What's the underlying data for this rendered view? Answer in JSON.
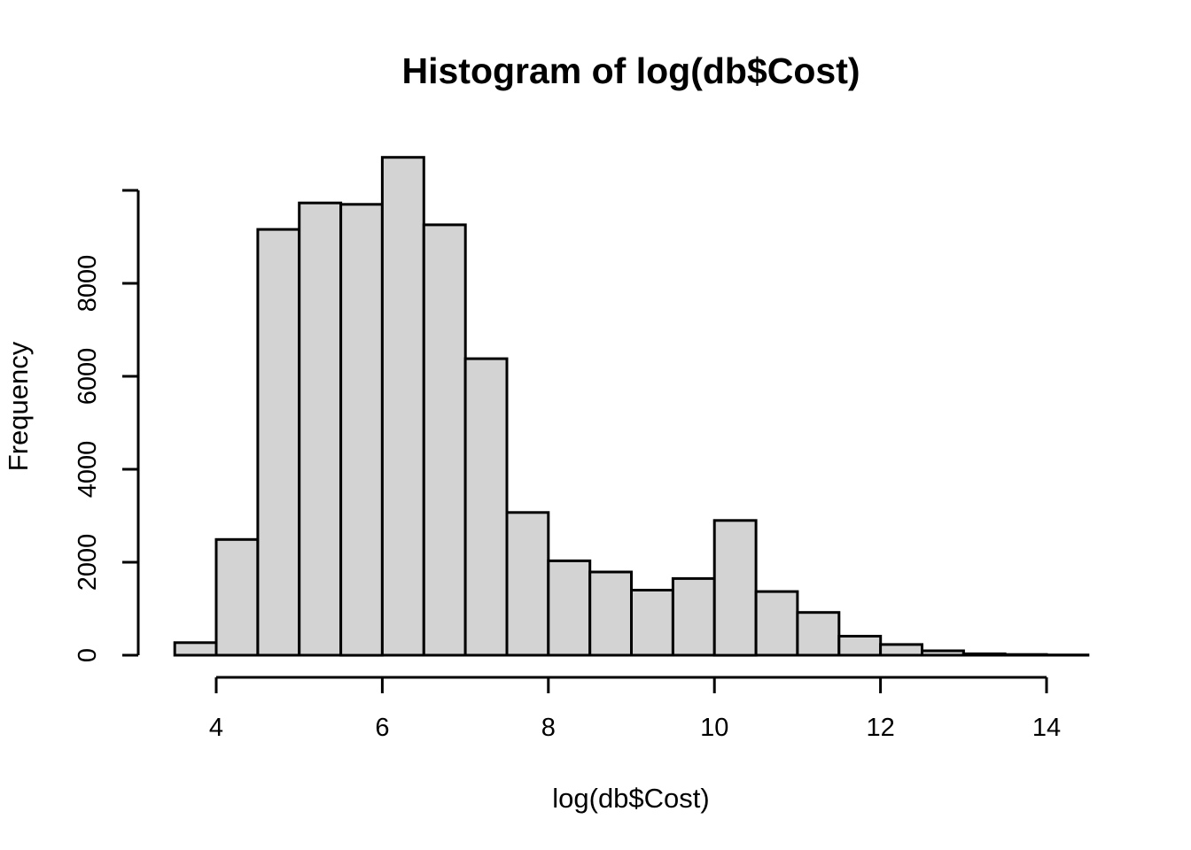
{
  "figure": {
    "background": "#FFFFFF"
  },
  "chart_data": {
    "type": "histogram",
    "title": "Histogram of log(db$Cost)",
    "xlabel": "log(db$Cost)",
    "ylabel": "Frequency",
    "bin_breaks": [
      3.5,
      4.0,
      4.5,
      5.0,
      5.5,
      6.0,
      6.5,
      7.0,
      7.5,
      8.0,
      8.5,
      9.0,
      9.5,
      10.0,
      10.5,
      11.0,
      11.5,
      12.0,
      12.5,
      13.0,
      13.5,
      14.0,
      14.5
    ],
    "counts": [
      270,
      2490,
      9160,
      9730,
      9700,
      10710,
      9260,
      6380,
      3070,
      2030,
      1790,
      1400,
      1650,
      2900,
      1370,
      920,
      410,
      230,
      95,
      30,
      15,
      5
    ],
    "x_tick_values": [
      4,
      6,
      8,
      10,
      12,
      14
    ],
    "x_tick_labels": [
      "4",
      "6",
      "8",
      "10",
      "12",
      "14"
    ],
    "y_tick_values": [
      0,
      2000,
      4000,
      6000,
      8000,
      10000
    ],
    "y_tick_labels": [
      "0",
      "2000",
      "4000",
      "6000",
      "8000",
      ""
    ],
    "xlim": [
      3.06,
      14.94
    ],
    "ylim": [
      0,
      10710
    ],
    "grid": false,
    "legend": null,
    "bar_fill": "#D3D3D3",
    "bar_stroke": "#000000",
    "axis_color": "#000000"
  }
}
